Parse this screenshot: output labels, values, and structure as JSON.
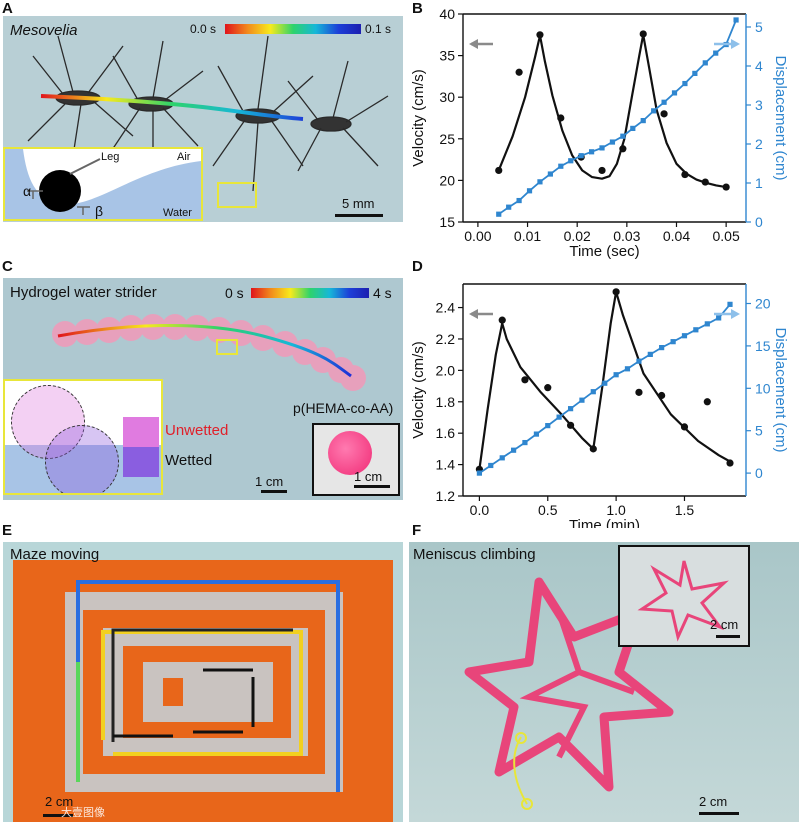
{
  "panels": {
    "A": {
      "letter": "A",
      "title": "Mesovelia",
      "colorbar_start": "0.0 s",
      "colorbar_end": "0.1 s",
      "inset_leg": "Leg",
      "inset_air": "Air",
      "inset_water": "Water",
      "inset_alpha": "α",
      "inset_beta": "β",
      "scale": "5 mm"
    },
    "B": {
      "letter": "B"
    },
    "C": {
      "letter": "C",
      "title": "Hydrogel water strider",
      "colorbar_start": "0 s",
      "colorbar_end": "4 s",
      "unwetted": "Unwetted",
      "wetted": "Wetted",
      "material": "p(HEMA-co-AA)",
      "scale_main": "1 cm",
      "scale_inset": "1 cm"
    },
    "D": {
      "letter": "D"
    },
    "E": {
      "letter": "E",
      "title": "Maze moving",
      "scale": "2 cm",
      "watermark": "大壹图像"
    },
    "F": {
      "letter": "F",
      "title": "Meniscus climbing",
      "scale_main": "2 cm",
      "scale_inset": "2 cm"
    }
  },
  "colors": {
    "velocity": "#111111",
    "displacement": "#2f86cf",
    "left_arrow": "#8a8a8a",
    "right_arrow": "#8ec0ea",
    "inset_frame": "#e8e63a",
    "unwetted_text": "#e0202a"
  },
  "chart_data": [
    {
      "id": "B",
      "type": "line",
      "xlabel": "Time (sec)",
      "ylabel_left": "Velocity (cm/s)",
      "ylabel_right": "Displacement (cm)",
      "xlim": [
        -0.003,
        0.054
      ],
      "ylim_left": [
        15,
        40
      ],
      "ylim_right": [
        0,
        5.333
      ],
      "x_ticks": [
        0,
        0.01,
        0.02,
        0.03,
        0.04,
        0.05
      ],
      "x_tick_labels": [
        "0.00",
        "0.01",
        "0.02",
        "0.03",
        "0.04",
        "0.05"
      ],
      "y_ticks_left": [
        15,
        20,
        25,
        30,
        35,
        40
      ],
      "y_ticks_right": [
        0,
        1,
        2,
        3,
        4,
        5
      ],
      "velocity_points": {
        "x": [
          0.0042,
          0.0083,
          0.0125,
          0.0167,
          0.0208,
          0.025,
          0.0292,
          0.0333,
          0.0375,
          0.0417,
          0.0458,
          0.05
        ],
        "y": [
          21.2,
          33.0,
          37.5,
          27.5,
          22.8,
          21.2,
          23.8,
          37.6,
          28.0,
          20.7,
          19.8,
          19.2
        ]
      },
      "velocity_fit": {
        "x": [
          0.0042,
          0.007,
          0.0095,
          0.0115,
          0.0125,
          0.0135,
          0.015,
          0.017,
          0.019,
          0.021,
          0.023,
          0.025,
          0.0265,
          0.028,
          0.0295,
          0.031,
          0.0325,
          0.0333,
          0.0345,
          0.036,
          0.038,
          0.04,
          0.042,
          0.044,
          0.046,
          0.048,
          0.05
        ],
        "y": [
          21.2,
          25.3,
          30.0,
          34.8,
          37.4,
          34.3,
          30.2,
          26.0,
          23.0,
          21.2,
          20.4,
          20.2,
          20.5,
          22.0,
          25.0,
          30.0,
          35.0,
          37.5,
          33.5,
          28.5,
          24.5,
          22.0,
          20.8,
          20.1,
          19.7,
          19.4,
          19.2
        ]
      },
      "displacement": {
        "x": [
          0.0042,
          0.0083,
          0.0125,
          0.0167,
          0.0208,
          0.025,
          0.0292,
          0.0333,
          0.0375,
          0.0417,
          0.0458,
          0.05
        ],
        "y": [
          0.2,
          0.55,
          1.03,
          1.43,
          1.7,
          1.9,
          2.2,
          2.6,
          3.07,
          3.55,
          4.08,
          4.55
        ]
      },
      "displacement_extra": {
        "x": [
          0.0062,
          0.0104,
          0.0146,
          0.0187,
          0.0229,
          0.0271,
          0.0312,
          0.0354,
          0.0396,
          0.0437,
          0.0479
        ],
        "y": [
          0.38,
          0.8,
          1.23,
          1.57,
          1.8,
          2.05,
          2.4,
          2.85,
          3.31,
          3.81,
          4.33
        ]
      },
      "displacement_end": {
        "x": [
          0.052
        ],
        "y": [
          5.18
        ]
      }
    },
    {
      "id": "D",
      "type": "line",
      "xlabel": "Time (min)",
      "ylabel_left": "Velocity (cm/s)",
      "ylabel_right": "Displacement (cm)",
      "xlim": [
        -0.12,
        1.95
      ],
      "ylim_left": [
        1.2,
        2.55
      ],
      "ylim_right": [
        -2.7,
        22.3
      ],
      "x_ticks": [
        0,
        0.5,
        1,
        1.5
      ],
      "x_tick_labels": [
        "0.0",
        "0.5",
        "1.0",
        "1.5"
      ],
      "y_ticks_left": [
        1.2,
        1.4,
        1.6,
        1.8,
        2.0,
        2.2,
        2.4
      ],
      "y_tick_labels_left": [
        "1.2",
        "1.4",
        "1.6",
        "1.8",
        "2.0",
        "2.2",
        "2.4"
      ],
      "y_ticks_right": [
        0,
        5,
        10,
        15,
        20
      ],
      "velocity_points": {
        "x": [
          0.0,
          0.167,
          0.333,
          0.5,
          0.667,
          0.833,
          1.0,
          1.167,
          1.333,
          1.5,
          1.667,
          1.833
        ],
        "y": [
          1.37,
          2.32,
          1.94,
          1.89,
          1.65,
          1.5,
          2.5,
          1.86,
          1.84,
          1.64,
          1.8,
          1.41
        ]
      },
      "velocity_fit": {
        "x": [
          0.0,
          0.06,
          0.12,
          0.167,
          0.2,
          0.3,
          0.45,
          0.6,
          0.75,
          0.833,
          0.9,
          0.96,
          1.0,
          1.05,
          1.2,
          1.4,
          1.6,
          1.75,
          1.833
        ],
        "y": [
          1.37,
          1.75,
          2.1,
          2.3,
          2.2,
          2.02,
          1.86,
          1.72,
          1.57,
          1.5,
          1.9,
          2.3,
          2.5,
          2.35,
          1.98,
          1.72,
          1.55,
          1.46,
          1.42
        ]
      },
      "displacement": {
        "x": [
          0.0,
          0.083,
          0.167,
          0.25,
          0.333,
          0.417,
          0.5,
          0.583,
          0.667,
          0.75,
          0.833,
          0.917,
          1.0,
          1.083,
          1.167,
          1.25,
          1.333,
          1.417,
          1.5,
          1.583,
          1.667,
          1.75,
          1.833
        ],
        "y": [
          0.0,
          0.9,
          1.8,
          2.7,
          3.6,
          4.6,
          5.6,
          6.6,
          7.6,
          8.6,
          9.6,
          10.6,
          11.6,
          12.3,
          13.2,
          14.0,
          14.8,
          15.5,
          16.2,
          16.9,
          17.6,
          18.3,
          19.9
        ]
      }
    }
  ]
}
